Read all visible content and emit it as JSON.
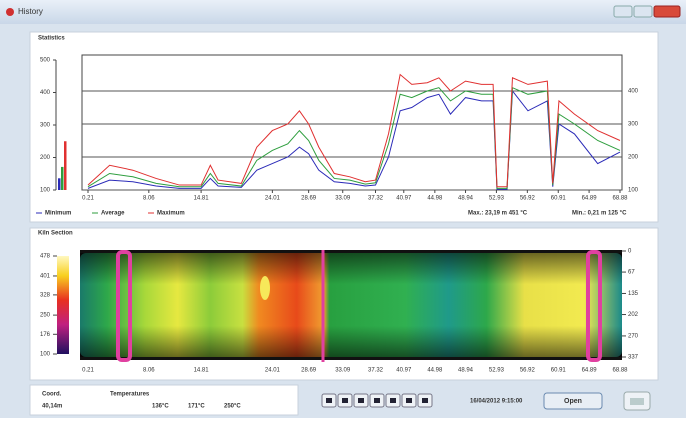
{
  "window": {
    "title": "History"
  },
  "statistics": {
    "label": "Statistics",
    "current": {
      "ylim": [
        100,
        500
      ],
      "yticks": [
        100,
        200,
        300,
        400,
        500
      ],
      "values": [
        136,
        171,
        250
      ]
    },
    "chart": {
      "type": "line",
      "x": [
        0.21,
        3,
        6,
        9,
        12,
        14.81,
        16,
        17,
        20,
        22,
        24,
        26,
        27.5,
        28.69,
        30,
        32,
        34,
        36,
        37.32,
        39,
        40.5,
        42,
        44,
        45.5,
        47,
        48.94,
        51,
        52.5,
        53,
        54.3,
        55,
        57,
        59.5,
        60.2,
        61,
        63,
        66,
        68.88
      ],
      "xlim": [
        0.21,
        68.88
      ],
      "xticks": [
        0.21,
        8.06,
        14.81,
        24.01,
        28.69,
        33.09,
        37.32,
        40.97,
        44.98,
        48.94,
        52.93,
        56.92,
        60.91,
        64.89,
        68.88
      ],
      "ylim": [
        100,
        500
      ],
      "yticks": [
        100,
        200,
        300,
        400
      ],
      "grid": true,
      "series": [
        {
          "name": "Minimum",
          "color": "#2b2bb8",
          "values": [
            105,
            130,
            125,
            112,
            105,
            105,
            135,
            112,
            108,
            160,
            180,
            200,
            230,
            210,
            160,
            125,
            120,
            112,
            115,
            200,
            340,
            350,
            380,
            390,
            330,
            380,
            370,
            370,
            102,
            102,
            400,
            340,
            370,
            110,
            300,
            270,
            180,
            215
          ]
        },
        {
          "name": "Average",
          "color": "#2e9e3e",
          "values": [
            110,
            150,
            140,
            120,
            110,
            110,
            150,
            120,
            112,
            190,
            220,
            240,
            280,
            250,
            190,
            135,
            130,
            118,
            122,
            240,
            390,
            380,
            400,
            410,
            370,
            400,
            390,
            390,
            105,
            105,
            410,
            390,
            400,
            115,
            330,
            300,
            250,
            220
          ]
        },
        {
          "name": "Maximum",
          "color": "#e03030",
          "values": [
            115,
            175,
            160,
            135,
            115,
            115,
            175,
            130,
            120,
            230,
            280,
            300,
            340,
            300,
            230,
            150,
            140,
            125,
            130,
            270,
            450,
            420,
            425,
            440,
            400,
            430,
            420,
            420,
            110,
            110,
            440,
            420,
            430,
            120,
            370,
            330,
            280,
            250
          ]
        }
      ],
      "max_label": "Max.: 23,19 m 451 °C",
      "min_label": "Min.: 0,21 m 125 °C"
    }
  },
  "kiln": {
    "label": "Kiln Section",
    "colorbar_lim": [
      100,
      478
    ],
    "colorbar_ticks": [
      478,
      401,
      328,
      250,
      176,
      100
    ],
    "angle_lim": [
      0,
      337
    ],
    "angle_ticks": [
      0,
      67,
      135,
      202,
      270,
      337
    ]
  },
  "footer": {
    "coord_label": "Coord.",
    "coord": "40,14m",
    "temps_label": "Temperatures",
    "temps": [
      "136°C",
      "171°C",
      "250°C"
    ],
    "datetime": "16/04/2012 9:15:00",
    "open": "Open"
  }
}
